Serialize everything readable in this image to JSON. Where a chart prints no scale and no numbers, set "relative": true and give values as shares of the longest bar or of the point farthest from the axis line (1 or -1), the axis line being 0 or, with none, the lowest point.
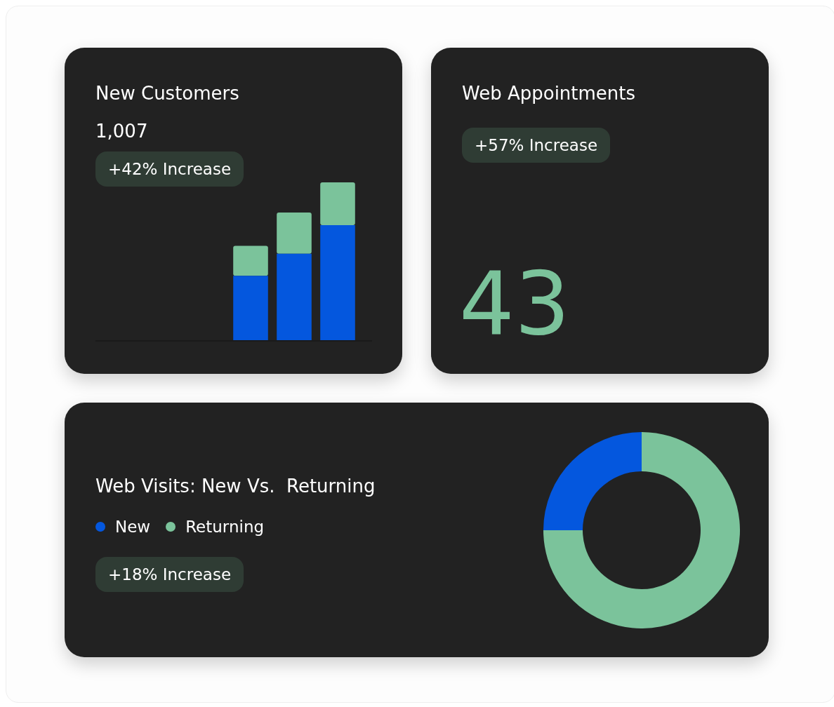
{
  "chart_data": [
    {
      "type": "bar",
      "title": "New Customers",
      "subtitle": "1,007",
      "annotations": [
        "+42% Increase"
      ],
      "relative": true,
      "stacked": true,
      "categories": [
        null,
        null,
        null
      ],
      "series": [
        {
          "color": "#0457de",
          "values": [
            0.41,
            0.55,
            0.73
          ]
        },
        {
          "color": "#7bc39b",
          "values": [
            0.19,
            0.26,
            0.27
          ]
        }
      ],
      "grid": false,
      "legend": false,
      "tick_labels": false
    },
    {
      "type": "other",
      "title": "Web Appointments",
      "annotations": [
        "+57% Increase",
        "43"
      ]
    },
    {
      "type": "donut",
      "title": "Web Visits: New Vs.  Returning",
      "annotations": [
        "+18% Increase"
      ],
      "categories": [
        "New",
        "Returning"
      ],
      "values": [
        25,
        75
      ],
      "colors": [
        "#0457de",
        "#7bc39b"
      ],
      "legend": "left"
    }
  ]
}
